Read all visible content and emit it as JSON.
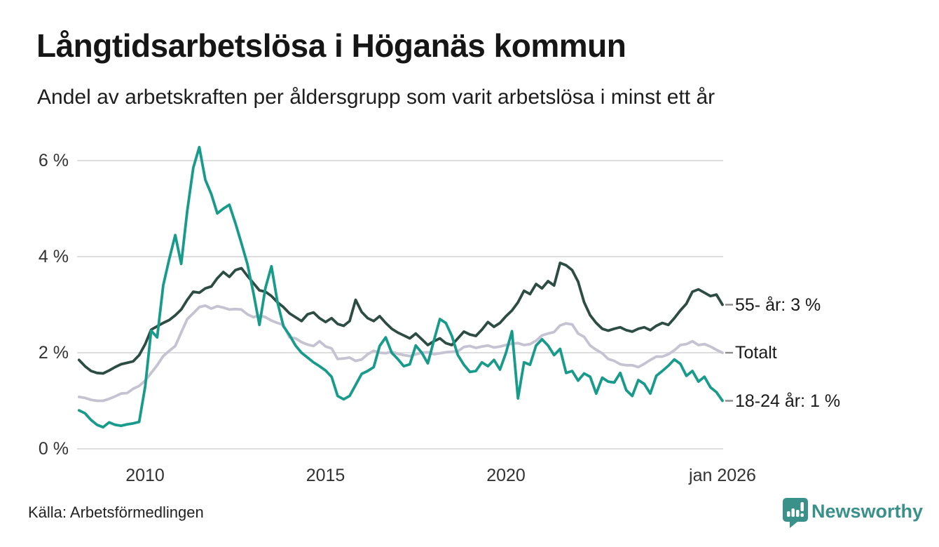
{
  "page": {
    "title": "Långtidsarbetslösa i Höganäs kommun",
    "subtitle": "Andel av arbetskraften per åldersgrupp som varit arbetslösa i minst ett år",
    "source": "Källa: Arbetsförmedlingen",
    "brand": "Newsworthy"
  },
  "colors": {
    "brand_teal": "#3a918a",
    "grid": "#dedede",
    "connector": "#8a8a8a",
    "axis_text": "#333333"
  },
  "chart_data": {
    "type": "line",
    "title": "Långtidsarbetslösa i Höganäs kommun",
    "subtitle": "Andel av arbetskraften per åldersgrupp som varit arbetslösa i minst ett år",
    "source": "Källa: Arbetsförmedlingen",
    "x_start": 2008.17,
    "x_end": 2026.0,
    "ylim": [
      0,
      6.6
    ],
    "grid": "horizontal",
    "legend_position": "right-edge-labels",
    "y_ticks": [
      {
        "value": 0,
        "label": "0 %"
      },
      {
        "value": 2,
        "label": "2 %"
      },
      {
        "value": 4,
        "label": "4 %"
      },
      {
        "value": 6,
        "label": "6 %"
      }
    ],
    "x_ticks": [
      {
        "value": 2010,
        "label": "2010"
      },
      {
        "value": 2015,
        "label": "2015"
      },
      {
        "value": 2020,
        "label": "2020"
      },
      {
        "value": 2026,
        "label": "jan 2026"
      }
    ],
    "series": [
      {
        "name": "Totalt",
        "end_label": "Totalt",
        "color": "#c5c3d1",
        "values": [
          1.08,
          1.06,
          1.02,
          1.0,
          1.0,
          1.04,
          1.09,
          1.15,
          1.16,
          1.25,
          1.31,
          1.42,
          1.58,
          1.74,
          1.93,
          2.04,
          2.14,
          2.42,
          2.7,
          2.82,
          2.95,
          2.98,
          2.92,
          2.97,
          2.94,
          2.9,
          2.91,
          2.9,
          2.8,
          2.74,
          2.78,
          2.74,
          2.67,
          2.62,
          2.58,
          2.32,
          2.3,
          2.22,
          2.17,
          2.14,
          2.24,
          2.13,
          2.09,
          1.87,
          1.88,
          1.9,
          1.83,
          1.86,
          1.97,
          2.04,
          2.0,
          1.99,
          2.02,
          1.98,
          1.95,
          1.93,
          1.97,
          2.0,
          2.01,
          1.97,
          1.99,
          2.01,
          2.02,
          2.03,
          2.12,
          2.14,
          2.1,
          2.13,
          2.15,
          2.11,
          2.13,
          2.16,
          2.19,
          2.2,
          2.16,
          2.18,
          2.25,
          2.36,
          2.4,
          2.43,
          2.57,
          2.61,
          2.59,
          2.4,
          2.33,
          2.15,
          2.06,
          1.99,
          1.87,
          1.83,
          1.76,
          1.74,
          1.74,
          1.7,
          1.77,
          1.85,
          1.92,
          1.92,
          1.97,
          2.05,
          2.16,
          2.18,
          2.24,
          2.16,
          2.18,
          2.13,
          2.06,
          2.0
        ]
      },
      {
        "name": "55- år",
        "end_label": "55- år: 3 %",
        "color": "#2d4c44",
        "values": [
          1.85,
          1.72,
          1.62,
          1.58,
          1.57,
          1.63,
          1.7,
          1.76,
          1.79,
          1.82,
          1.95,
          2.18,
          2.48,
          2.55,
          2.62,
          2.68,
          2.78,
          2.9,
          3.1,
          3.27,
          3.25,
          3.34,
          3.38,
          3.55,
          3.68,
          3.58,
          3.72,
          3.76,
          3.6,
          3.45,
          3.3,
          3.27,
          3.18,
          3.05,
          2.95,
          2.82,
          2.74,
          2.66,
          2.8,
          2.84,
          2.72,
          2.64,
          2.72,
          2.6,
          2.56,
          2.66,
          3.1,
          2.85,
          2.72,
          2.66,
          2.76,
          2.62,
          2.5,
          2.42,
          2.36,
          2.3,
          2.4,
          2.28,
          2.16,
          2.24,
          2.3,
          2.2,
          2.16,
          2.3,
          2.44,
          2.38,
          2.35,
          2.48,
          2.64,
          2.54,
          2.62,
          2.76,
          2.88,
          3.05,
          3.29,
          3.22,
          3.43,
          3.34,
          3.49,
          3.4,
          3.87,
          3.82,
          3.72,
          3.48,
          3.05,
          2.78,
          2.62,
          2.5,
          2.46,
          2.5,
          2.53,
          2.47,
          2.44,
          2.5,
          2.53,
          2.47,
          2.56,
          2.62,
          2.58,
          2.72,
          2.88,
          3.02,
          3.27,
          3.32,
          3.25,
          3.18,
          3.21,
          3.0
        ]
      },
      {
        "name": "18-24 år",
        "end_label": "18-24 år: 1 %",
        "color": "#189b8a",
        "values": [
          0.8,
          0.74,
          0.6,
          0.5,
          0.45,
          0.55,
          0.5,
          0.48,
          0.51,
          0.53,
          0.56,
          1.3,
          2.46,
          2.32,
          3.4,
          3.95,
          4.45,
          3.85,
          4.95,
          5.85,
          6.28,
          5.6,
          5.3,
          4.9,
          5.0,
          5.08,
          4.7,
          4.28,
          3.85,
          3.25,
          2.58,
          3.35,
          3.8,
          3.05,
          2.55,
          2.37,
          2.15,
          2.0,
          1.9,
          1.8,
          1.72,
          1.63,
          1.5,
          1.1,
          1.03,
          1.1,
          1.33,
          1.56,
          1.62,
          1.7,
          2.14,
          2.32,
          2.0,
          1.87,
          1.72,
          1.76,
          2.15,
          2.0,
          1.78,
          2.25,
          2.7,
          2.62,
          2.35,
          1.95,
          1.75,
          1.6,
          1.62,
          1.8,
          1.72,
          1.85,
          1.65,
          2.0,
          2.45,
          1.05,
          1.8,
          1.75,
          2.15,
          2.28,
          2.15,
          1.95,
          2.08,
          1.58,
          1.62,
          1.42,
          1.57,
          1.5,
          1.15,
          1.48,
          1.4,
          1.38,
          1.58,
          1.22,
          1.1,
          1.43,
          1.35,
          1.15,
          1.52,
          1.62,
          1.73,
          1.86,
          1.77,
          1.52,
          1.62,
          1.4,
          1.5,
          1.28,
          1.18,
          1.0
        ]
      }
    ]
  }
}
